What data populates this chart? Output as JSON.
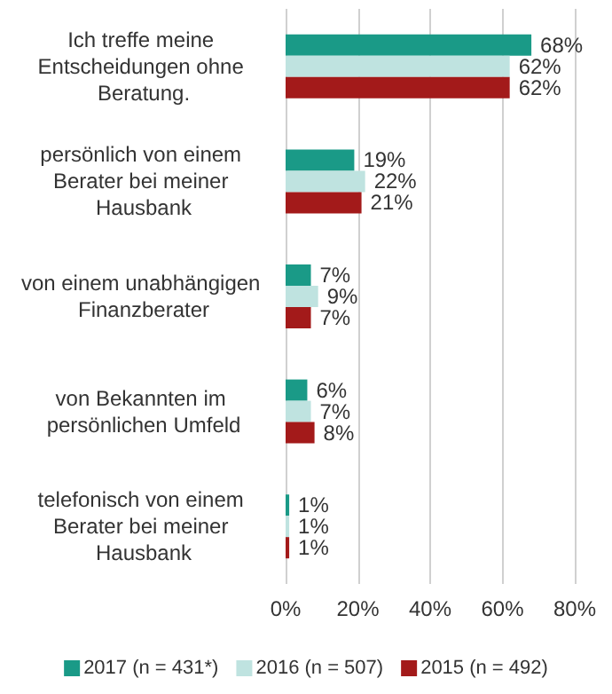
{
  "chart_data": {
    "type": "bar",
    "orientation": "horizontal",
    "categories": [
      "Ich treffe meine Entscheidungen ohne Beratung.",
      "persönlich von einem Berater bei meiner Hausbank",
      "von einem unabhängigen Finanzberater",
      "von Bekannten im persönlichen Umfeld",
      "telefonisch von einem Berater bei meiner Hausbank"
    ],
    "series": [
      {
        "name": "2017 (n = 431*)",
        "color": "#1a9a87",
        "values": [
          68,
          19,
          7,
          6,
          1
        ],
        "value_labels": [
          "68%",
          "19%",
          "7%",
          "6%",
          "1%"
        ]
      },
      {
        "name": "2016 (n = 507)",
        "color": "#bfe3e0",
        "values": [
          62,
          22,
          9,
          7,
          1
        ],
        "value_labels": [
          "62%",
          "22%",
          "9%",
          "7%",
          "1%"
        ]
      },
      {
        "name": "2015 (n = 492)",
        "color": "#a31a1a",
        "values": [
          62,
          21,
          7,
          8,
          1
        ],
        "value_labels": [
          "62%",
          "21%",
          "7%",
          "8%",
          "1%"
        ]
      }
    ],
    "xlim": [
      0,
      80
    ],
    "xticks": [
      {
        "value": 0,
        "label": "0%"
      },
      {
        "value": 20,
        "label": "20%"
      },
      {
        "value": 40,
        "label": "40%"
      },
      {
        "value": 60,
        "label": "60%"
      },
      {
        "value": 80,
        "label": "80%"
      }
    ],
    "grid": "x",
    "legend": "bottom"
  }
}
